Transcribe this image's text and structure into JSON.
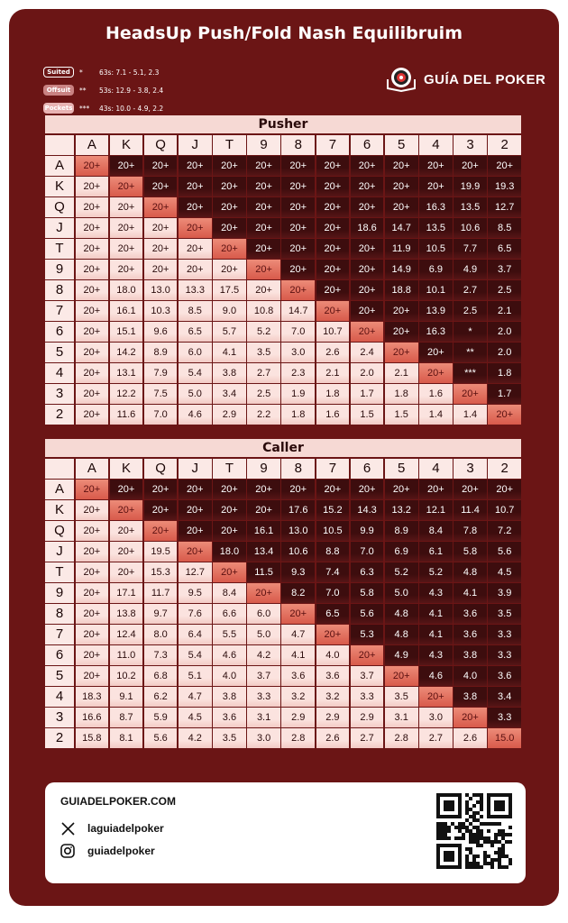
{
  "title": "HeadsUp Push/Fold Nash Equilibruim",
  "legend": [
    {
      "label": "Suited",
      "stars": "*",
      "note": "63s: 7.1 - 5.1, 2.3"
    },
    {
      "label": "Offsuit",
      "stars": "**",
      "note": "53s: 12.9 - 3.8, 2.4"
    },
    {
      "label": "Pockets",
      "stars": "***",
      "note": "43s: 10.0 - 4.9, 2.2"
    }
  ],
  "brand": "GUÍA DEL POKER",
  "colors": {
    "background": "#6b1515",
    "suited": "#3d0d0e",
    "offsuit": "#fbe3df",
    "pair": "#e07564"
  },
  "ranks": [
    "A",
    "K",
    "Q",
    "J",
    "T",
    "9",
    "8",
    "7",
    "6",
    "5",
    "4",
    "3",
    "2"
  ],
  "pusher": {
    "title": "Pusher",
    "rows": [
      [
        "20+",
        "20+",
        "20+",
        "20+",
        "20+",
        "20+",
        "20+",
        "20+",
        "20+",
        "20+",
        "20+",
        "20+",
        "20+"
      ],
      [
        "20+",
        "20+",
        "20+",
        "20+",
        "20+",
        "20+",
        "20+",
        "20+",
        "20+",
        "20+",
        "20+",
        "19.9",
        "19.3"
      ],
      [
        "20+",
        "20+",
        "20+",
        "20+",
        "20+",
        "20+",
        "20+",
        "20+",
        "20+",
        "20+",
        "16.3",
        "13.5",
        "12.7"
      ],
      [
        "20+",
        "20+",
        "20+",
        "20+",
        "20+",
        "20+",
        "20+",
        "20+",
        "18.6",
        "14.7",
        "13.5",
        "10.6",
        "8.5"
      ],
      [
        "20+",
        "20+",
        "20+",
        "20+",
        "20+",
        "20+",
        "20+",
        "20+",
        "20+",
        "11.9",
        "10.5",
        "7.7",
        "6.5"
      ],
      [
        "20+",
        "20+",
        "20+",
        "20+",
        "20+",
        "20+",
        "20+",
        "20+",
        "20+",
        "14.9",
        "6.9",
        "4.9",
        "3.7"
      ],
      [
        "20+",
        "18.0",
        "13.0",
        "13.3",
        "17.5",
        "20+",
        "20+",
        "20+",
        "20+",
        "18.8",
        "10.1",
        "2.7",
        "2.5"
      ],
      [
        "20+",
        "16.1",
        "10.3",
        "8.5",
        "9.0",
        "10.8",
        "14.7",
        "20+",
        "20+",
        "20+",
        "13.9",
        "2.5",
        "2.1"
      ],
      [
        "20+",
        "15.1",
        "9.6",
        "6.5",
        "5.7",
        "5.2",
        "7.0",
        "10.7",
        "20+",
        "20+",
        "16.3",
        "*",
        "2.0"
      ],
      [
        "20+",
        "14.2",
        "8.9",
        "6.0",
        "4.1",
        "3.5",
        "3.0",
        "2.6",
        "2.4",
        "20+",
        "20+",
        "**",
        "2.0"
      ],
      [
        "20+",
        "13.1",
        "7.9",
        "5.4",
        "3.8",
        "2.7",
        "2.3",
        "2.1",
        "2.0",
        "2.1",
        "20+",
        "***",
        "1.8"
      ],
      [
        "20+",
        "12.2",
        "7.5",
        "5.0",
        "3.4",
        "2.5",
        "1.9",
        "1.8",
        "1.7",
        "1.8",
        "1.6",
        "20+",
        "1.7"
      ],
      [
        "20+",
        "11.6",
        "7.0",
        "4.6",
        "2.9",
        "2.2",
        "1.8",
        "1.6",
        "1.5",
        "1.5",
        "1.4",
        "1.4",
        "20+"
      ]
    ]
  },
  "caller": {
    "title": "Caller",
    "rows": [
      [
        "20+",
        "20+",
        "20+",
        "20+",
        "20+",
        "20+",
        "20+",
        "20+",
        "20+",
        "20+",
        "20+",
        "20+",
        "20+"
      ],
      [
        "20+",
        "20+",
        "20+",
        "20+",
        "20+",
        "20+",
        "17.6",
        "15.2",
        "14.3",
        "13.2",
        "12.1",
        "11.4",
        "10.7"
      ],
      [
        "20+",
        "20+",
        "20+",
        "20+",
        "20+",
        "16.1",
        "13.0",
        "10.5",
        "9.9",
        "8.9",
        "8.4",
        "7.8",
        "7.2"
      ],
      [
        "20+",
        "20+",
        "19.5",
        "20+",
        "18.0",
        "13.4",
        "10.6",
        "8.8",
        "7.0",
        "6.9",
        "6.1",
        "5.8",
        "5.6"
      ],
      [
        "20+",
        "20+",
        "15.3",
        "12.7",
        "20+",
        "11.5",
        "9.3",
        "7.4",
        "6.3",
        "5.2",
        "5.2",
        "4.8",
        "4.5"
      ],
      [
        "20+",
        "17.1",
        "11.7",
        "9.5",
        "8.4",
        "20+",
        "8.2",
        "7.0",
        "5.8",
        "5.0",
        "4.3",
        "4.1",
        "3.9"
      ],
      [
        "20+",
        "13.8",
        "9.7",
        "7.6",
        "6.6",
        "6.0",
        "20+",
        "6.5",
        "5.6",
        "4.8",
        "4.1",
        "3.6",
        "3.5"
      ],
      [
        "20+",
        "12.4",
        "8.0",
        "6.4",
        "5.5",
        "5.0",
        "4.7",
        "20+",
        "5.3",
        "4.8",
        "4.1",
        "3.6",
        "3.3"
      ],
      [
        "20+",
        "11.0",
        "7.3",
        "5.4",
        "4.6",
        "4.2",
        "4.1",
        "4.0",
        "20+",
        "4.9",
        "4.3",
        "3.8",
        "3.3"
      ],
      [
        "20+",
        "10.2",
        "6.8",
        "5.1",
        "4.0",
        "3.7",
        "3.6",
        "3.6",
        "3.7",
        "20+",
        "4.6",
        "4.0",
        "3.6"
      ],
      [
        "18.3",
        "9.1",
        "6.2",
        "4.7",
        "3.8",
        "3.3",
        "3.2",
        "3.2",
        "3.3",
        "3.5",
        "20+",
        "3.8",
        "3.4"
      ],
      [
        "16.6",
        "8.7",
        "5.9",
        "4.5",
        "3.6",
        "3.1",
        "2.9",
        "2.9",
        "2.9",
        "3.1",
        "3.0",
        "20+",
        "3.3"
      ],
      [
        "15.8",
        "8.1",
        "5.6",
        "4.2",
        "3.5",
        "3.0",
        "2.8",
        "2.6",
        "2.7",
        "2.8",
        "2.7",
        "2.6",
        "15.0"
      ]
    ]
  },
  "footer": {
    "site": "GUIADELPOKER.COM",
    "x_handle": "laguiadelpoker",
    "instagram_handle": "guiadelpoker"
  }
}
